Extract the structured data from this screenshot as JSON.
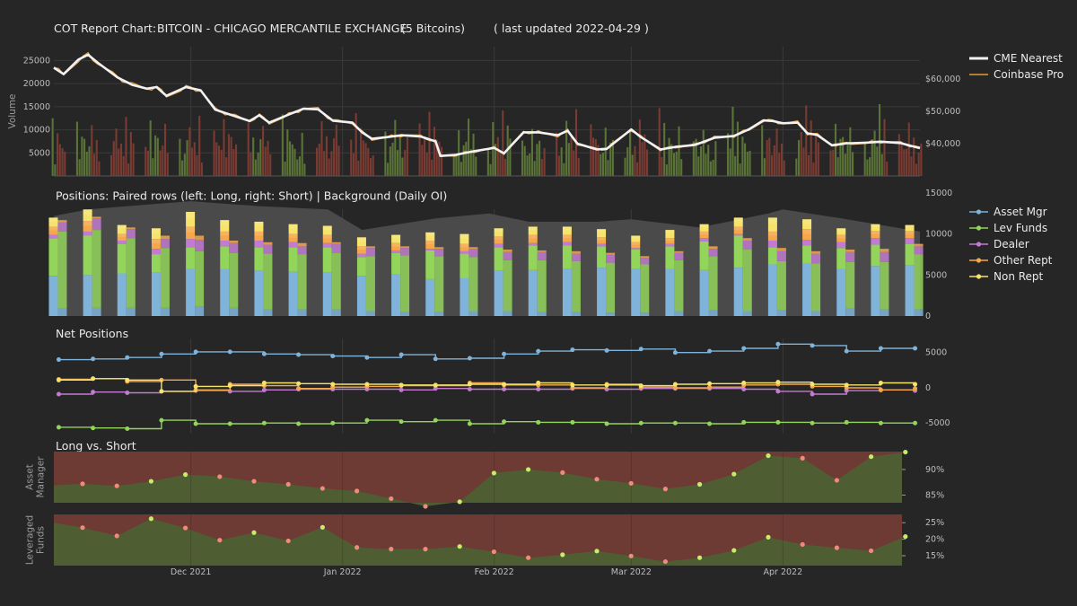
{
  "title": {
    "prefix": "COT Report Chart:",
    "market": "BITCOIN - CHICAGO MERCANTILE EXCHANGE",
    "contract": "(5 Bitcoins)",
    "updated": "( last updated 2022-04-29 )"
  },
  "colors": {
    "bg": "#262626",
    "plot_bg": "#262626",
    "grid": "#3a3a3a",
    "up": "#5a7337",
    "down": "#7a3b32",
    "cme": "#f2f2f2",
    "coinbase": "#e49a3a",
    "oi_bg": "#4a4a4a",
    "asset_mgr": "#7fb3d9",
    "lev_funds": "#93d45a",
    "dealer": "#c27bd1",
    "other_rept": "#f5a84a",
    "non_rept": "#f6e36a",
    "long_fill": "#4f5d33",
    "short_fill": "#6e3a34",
    "dot_red": "#f08b7c",
    "dot_green": "#c5ec6a"
  },
  "chart_data": [
    {
      "type": "line",
      "panel": "Price & Volume",
      "ylabel": "Volume",
      "y_ticks": [
        "5000",
        "10000",
        "15000",
        "20000",
        "25000"
      ],
      "y2_ticks": [
        "$40,000",
        "$50,000",
        "$60,000"
      ],
      "ylim": [
        0,
        28000
      ],
      "y2lim": [
        30000,
        70000
      ],
      "x_ticks": [
        "Dec 2021",
        "Jan 2022",
        "Feb 2022",
        "Mar 2022",
        "Apr 2022"
      ],
      "x_range": [
        "2021-11-03",
        "2022-04-29"
      ],
      "legend": [
        "CME Nearest",
        "Coinbase Pro"
      ],
      "cme_keypoints": [
        [
          "2021-11-03",
          63500
        ],
        [
          "2021-11-05",
          61500
        ],
        [
          "2021-11-08",
          66000
        ],
        [
          "2021-11-10",
          67500
        ],
        [
          "2021-11-12",
          65000
        ],
        [
          "2021-11-16",
          60500
        ],
        [
          "2021-11-19",
          58200
        ],
        [
          "2021-11-22",
          57000
        ],
        [
          "2021-11-24",
          57500
        ],
        [
          "2021-11-26",
          54800
        ],
        [
          "2021-11-30",
          57500
        ],
        [
          "2021-12-03",
          56500
        ],
        [
          "2021-12-06",
          50500
        ],
        [
          "2021-12-10",
          48500
        ],
        [
          "2021-12-13",
          47000
        ],
        [
          "2021-12-15",
          48800
        ],
        [
          "2021-12-17",
          46500
        ],
        [
          "2021-12-21",
          49000
        ],
        [
          "2021-12-24",
          50800
        ],
        [
          "2021-12-27",
          50600
        ],
        [
          "2021-12-30",
          47100
        ],
        [
          "2022-01-03",
          46500
        ],
        [
          "2022-01-05",
          43500
        ],
        [
          "2022-01-07",
          41500
        ],
        [
          "2022-01-10",
          42000
        ],
        [
          "2022-01-13",
          42600
        ],
        [
          "2022-01-17",
          42200
        ],
        [
          "2022-01-20",
          40700
        ],
        [
          "2022-01-21",
          36200
        ],
        [
          "2022-01-24",
          36500
        ],
        [
          "2022-01-28",
          37700
        ],
        [
          "2022-02-01",
          38700
        ],
        [
          "2022-02-03",
          37000
        ],
        [
          "2022-02-07",
          43500
        ],
        [
          "2022-02-10",
          43500
        ],
        [
          "2022-02-14",
          42600
        ],
        [
          "2022-02-16",
          44000
        ],
        [
          "2022-02-18",
          40000
        ],
        [
          "2022-02-22",
          38200
        ],
        [
          "2022-02-24",
          38400
        ],
        [
          "2022-03-01",
          44400
        ],
        [
          "2022-03-03",
          42000
        ],
        [
          "2022-03-07",
          38200
        ],
        [
          "2022-03-10",
          39000
        ],
        [
          "2022-03-14",
          39600
        ],
        [
          "2022-03-18",
          41800
        ],
        [
          "2022-03-22",
          42400
        ],
        [
          "2022-03-25",
          44400
        ],
        [
          "2022-03-28",
          47200
        ],
        [
          "2022-03-30",
          47000
        ],
        [
          "2022-04-01",
          46300
        ],
        [
          "2022-04-04",
          46500
        ],
        [
          "2022-04-06",
          43200
        ],
        [
          "2022-04-08",
          42700
        ],
        [
          "2022-04-11",
          39500
        ],
        [
          "2022-04-14",
          40100
        ],
        [
          "2022-04-18",
          40300
        ],
        [
          "2022-04-21",
          40600
        ],
        [
          "2022-04-25",
          40200
        ],
        [
          "2022-04-29",
          38600
        ]
      ]
    },
    {
      "type": "bar",
      "panel": "Positions",
      "title": "Positions: Paired rows (left: Long, right: Short) | Background (Daily OI)",
      "y_ticks": [
        "0",
        "5000",
        "10000",
        "15000"
      ],
      "ylim": [
        0,
        15000
      ],
      "legend": [
        "Asset Mgr",
        "Lev Funds",
        "Dealer",
        "Other Rept",
        "Non Rept"
      ],
      "weeks": [
        "2021-11-02",
        "2021-11-09",
        "2021-11-16",
        "2021-11-23",
        "2021-11-30",
        "2021-12-07",
        "2021-12-14",
        "2021-12-21",
        "2021-12-28",
        "2022-01-04",
        "2022-01-11",
        "2022-01-18",
        "2022-01-25",
        "2022-02-01",
        "2022-02-08",
        "2022-02-15",
        "2022-02-22",
        "2022-03-01",
        "2022-03-08",
        "2022-03-15",
        "2022-03-22",
        "2022-03-29",
        "2022-04-05",
        "2022-04-12",
        "2022-04-19",
        "2022-04-26"
      ],
      "long": {
        "asset_mgr": [
          4900,
          5000,
          5200,
          5300,
          5700,
          5700,
          5500,
          5400,
          5300,
          4900,
          5100,
          4500,
          4600,
          5500,
          5600,
          5800,
          5900,
          5800,
          5700,
          5600,
          5900,
          6300,
          6400,
          5700,
          6100,
          6200
        ],
        "lev_funds": [
          4600,
          4800,
          3600,
          2200,
          2700,
          2800,
          2900,
          3000,
          3100,
          2300,
          2600,
          3500,
          3000,
          2900,
          3000,
          2800,
          2600,
          2300,
          2800,
          3500,
          3900,
          2100,
          2200,
          2600,
          2600,
          2600
        ],
        "dealer": [
          400,
          500,
          400,
          700,
          1000,
          700,
          800,
          600,
          500,
          400,
          300,
          200,
          300,
          400,
          300,
          400,
          300,
          200,
          300,
          400,
          200,
          800,
          700,
          700,
          800,
          700
        ],
        "other_rept": [
          1000,
          1300,
          800,
          1200,
          1500,
          1100,
          1100,
          1000,
          1000,
          900,
          900,
          1000,
          900,
          900,
          1000,
          900,
          800,
          700,
          700,
          800,
          900,
          1100,
          1300,
          900,
          900,
          900
        ],
        "non_rept": [
          1100,
          1400,
          1100,
          1300,
          1800,
          1400,
          1200,
          1200,
          1100,
          1100,
          1000,
          1000,
          1200,
          1000,
          1000,
          1000,
          1000,
          800,
          1000,
          900,
          1100,
          1700,
          1200,
          800,
          800,
          700
        ]
      },
      "short": {
        "asset_mgr": [
          900,
          1000,
          1000,
          1000,
          1200,
          1000,
          800,
          800,
          800,
          600,
          500,
          500,
          600,
          600,
          500,
          500,
          400,
          400,
          600,
          700,
          600,
          700,
          600,
          900,
          800,
          800
        ],
        "lev_funds": [
          9400,
          9500,
          8500,
          7300,
          6700,
          6700,
          6800,
          6700,
          6900,
          6700,
          6900,
          6800,
          6600,
          6200,
          6300,
          6200,
          6100,
          5900,
          6200,
          6600,
          7500,
          6000,
          5800,
          5700,
          5800,
          6700
        ],
        "dealer": [
          1100,
          1400,
          1100,
          1100,
          1400,
          1200,
          1100,
          1000,
          1100,
          1000,
          900,
          900,
          1000,
          1000,
          1000,
          900,
          1000,
          800,
          900,
          900,
          1100,
          1200,
          1200,
          1200,
          1200,
          1000
        ],
        "other_rept": [
          300,
          200,
          200,
          400,
          500,
          300,
          300,
          400,
          200,
          200,
          200,
          200,
          200,
          300,
          200,
          300,
          200,
          200,
          200,
          300,
          300,
          400,
          300,
          300,
          400,
          300
        ],
        "non_rept": [
          0,
          0,
          0,
          0,
          0,
          0,
          0,
          0,
          0,
          0,
          0,
          0,
          0,
          0,
          0,
          0,
          0,
          0,
          0,
          0,
          0,
          0,
          0,
          0,
          0,
          0
        ]
      },
      "oi_keypoints": [
        [
          "2021-11-03",
          12200
        ],
        [
          "2021-11-10",
          13000
        ],
        [
          "2021-11-20",
          13500
        ],
        [
          "2021-12-01",
          14000
        ],
        [
          "2021-12-15",
          13400
        ],
        [
          "2021-12-29",
          13000
        ],
        [
          "2022-01-05",
          10500
        ],
        [
          "2022-01-20",
          11900
        ],
        [
          "2022-01-31",
          12500
        ],
        [
          "2022-02-08",
          11500
        ],
        [
          "2022-02-22",
          11500
        ],
        [
          "2022-03-01",
          11800
        ],
        [
          "2022-03-15",
          10800
        ],
        [
          "2022-03-29",
          12500
        ],
        [
          "2022-04-01",
          13000
        ],
        [
          "2022-04-12",
          12000
        ],
        [
          "2022-04-29",
          10300
        ]
      ]
    },
    {
      "type": "line",
      "panel": "Net Positions",
      "title": "Net Positions",
      "y_ticks": [
        "-5000",
        "0",
        "5000"
      ],
      "ylim": [
        -6500,
        7000
      ],
      "series": [
        {
          "name": "Asset Mgr",
          "values": [
            4000,
            4100,
            4300,
            4800,
            5100,
            5100,
            4800,
            4700,
            4500,
            4300,
            4700,
            4100,
            4200,
            4800,
            5200,
            5400,
            5300,
            5500,
            5000,
            5200,
            5600,
            6200,
            6000,
            5200,
            5600,
            5600
          ]
        },
        {
          "name": "Lev Funds",
          "values": [
            -5600,
            -5700,
            -5800,
            -4600,
            -5100,
            -5100,
            -5000,
            -5100,
            -5000,
            -4600,
            -4800,
            -4600,
            -5100,
            -4800,
            -4900,
            -4900,
            -5100,
            -5000,
            -5000,
            -5100,
            -4900,
            -4900,
            -5000,
            -4900,
            -5000,
            -5000
          ]
        },
        {
          "name": "Dealer",
          "values": [
            -900,
            -600,
            -700,
            -500,
            -400,
            -500,
            -300,
            -200,
            -200,
            -200,
            -300,
            -100,
            -200,
            -200,
            -200,
            -100,
            -200,
            -100,
            -100,
            -100,
            -200,
            -500,
            -900,
            -400,
            -300,
            -400
          ]
        },
        {
          "name": "Other Rept",
          "values": [
            1200,
            1300,
            900,
            1100,
            -300,
            500,
            300,
            -100,
            100,
            200,
            300,
            300,
            700,
            400,
            400,
            0,
            500,
            100,
            0,
            100,
            400,
            500,
            200,
            0,
            -300,
            -100
          ]
        },
        {
          "name": "Non Rept",
          "values": [
            1100,
            1300,
            1100,
            -500,
            200,
            300,
            700,
            600,
            500,
            500,
            400,
            400,
            500,
            500,
            700,
            400,
            400,
            300,
            500,
            600,
            700,
            800,
            500,
            400,
            700,
            500
          ]
        }
      ]
    },
    {
      "type": "area",
      "panel": "Long vs. Short",
      "title": "Long vs. Short",
      "rows": [
        {
          "name": "Asset Manager",
          "label": [
            "Asset",
            "Manager"
          ],
          "y_ticks": [
            "85%",
            "90%"
          ],
          "ylim": [
            83.5,
            93.5
          ],
          "values": [
            87.2,
            86.8,
            87.7,
            89.0,
            88.6,
            87.7,
            87.1,
            86.3,
            85.8,
            84.3,
            82.8,
            83.7,
            89.3,
            90.0,
            89.4,
            88.1,
            87.3,
            86.2,
            87.1,
            89.1,
            92.7,
            92.2,
            87.9,
            92.5,
            93.4
          ]
        },
        {
          "name": "Leveraged Funds",
          "label": [
            "Leveraged",
            "Funds"
          ],
          "y_ticks": [
            "15%",
            "20%",
            "25%"
          ],
          "ylim": [
            12.0,
            27.5
          ],
          "values": [
            23.5,
            21.0,
            26.2,
            23.4,
            19.7,
            22.0,
            19.5,
            23.6,
            17.5,
            17.0,
            17.0,
            17.8,
            16.2,
            14.4,
            15.3,
            16.4,
            14.9,
            13.2,
            14.4,
            16.6,
            20.6,
            18.4,
            17.4,
            16.5,
            20.8
          ]
        }
      ]
    }
  ]
}
